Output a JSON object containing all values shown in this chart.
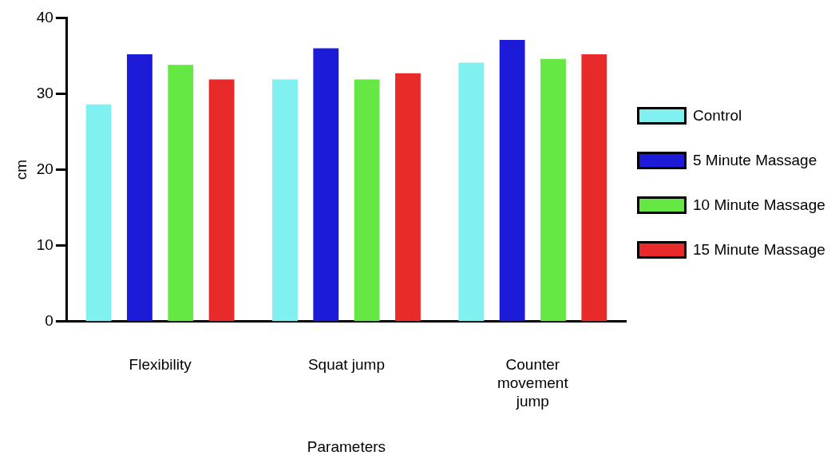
{
  "chart_data": {
    "type": "bar",
    "xlabel": "Parameters",
    "ylabel": "cm",
    "categories": [
      "Flexibility",
      "Squat jump",
      "Counter movement jump"
    ],
    "series": [
      {
        "name": "Control",
        "color": "#80f0f0",
        "values": [
          28.6,
          31.9,
          34.1
        ]
      },
      {
        "name": "5 Minute Massage",
        "color": "#1c1cd8",
        "values": [
          35.2,
          36.0,
          37.1
        ]
      },
      {
        "name": "10 Minute Massage",
        "color": "#66e844",
        "values": [
          33.8,
          31.9,
          34.6
        ]
      },
      {
        "name": "15 Minute Massage",
        "color": "#e82a2a",
        "values": [
          31.9,
          32.7,
          35.2
        ]
      }
    ],
    "ylim": [
      0,
      40
    ],
    "yticks": [
      0,
      10,
      20,
      30,
      40
    ],
    "grid": false,
    "legend": "right"
  }
}
